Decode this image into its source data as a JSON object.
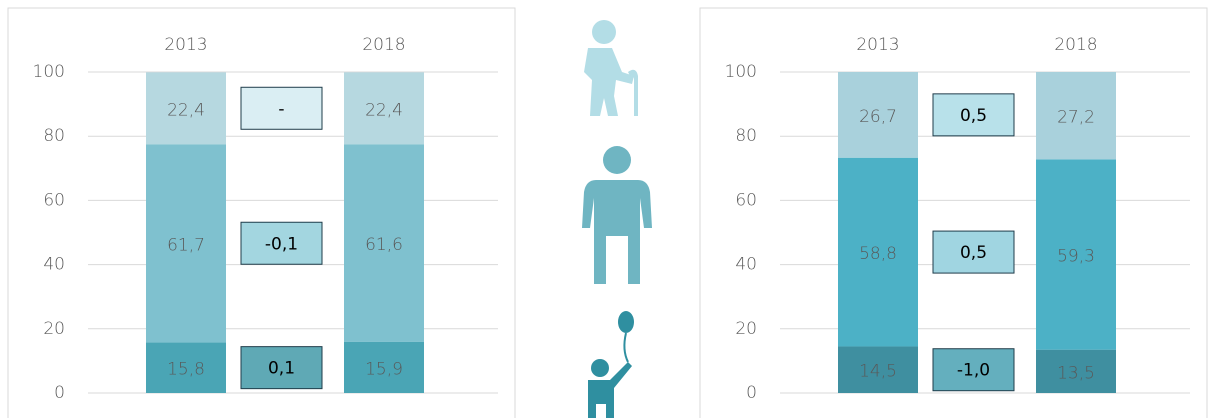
{
  "chart_data": [
    {
      "type": "stacked_bar",
      "categories": [
        "2013",
        "2018"
      ],
      "series": [
        {
          "color": "#4aa5b5",
          "values": [
            15.8,
            15.9
          ],
          "value_labels": [
            "15,8",
            "15,9"
          ]
        },
        {
          "color": "#7fc1cf",
          "values": [
            61.7,
            61.6
          ],
          "value_labels": [
            "61,7",
            "61,6"
          ]
        },
        {
          "color": "#b6d8e0",
          "values": [
            22.4,
            22.4
          ],
          "value_labels": [
            "22,4",
            "22,4"
          ]
        }
      ],
      "annotations": [
        {
          "text": "0,1",
          "color": "#5fa9b5"
        },
        {
          "text": "-0,1",
          "color": "#a3d6e0"
        },
        {
          "text": "-",
          "color": "#daeef3"
        }
      ],
      "ylim": [
        0,
        100
      ],
      "yticks": [
        0,
        20,
        40,
        60,
        80,
        100
      ],
      "grid": true
    },
    {
      "type": "stacked_bar",
      "categories": [
        "2013",
        "2018"
      ],
      "series": [
        {
          "color": "#3f8fa0",
          "values": [
            14.5,
            13.5
          ],
          "value_labels": [
            "14,5",
            "13,5"
          ]
        },
        {
          "color": "#4cb1c6",
          "values": [
            58.8,
            59.3
          ],
          "value_labels": [
            "58,8",
            "59,3"
          ]
        },
        {
          "color": "#a9d1dc",
          "values": [
            26.7,
            27.2
          ],
          "value_labels": [
            "26,7",
            "27,2"
          ]
        }
      ],
      "annotations": [
        {
          "text": "-1,0",
          "color": "#64afbe"
        },
        {
          "text": "0,5",
          "color": "#a0d5e1"
        },
        {
          "text": "0,5",
          "color": "#b8e1ea"
        }
      ],
      "ylim": [
        0,
        100
      ],
      "yticks": [
        0,
        20,
        40,
        60,
        80,
        100
      ],
      "grid": true
    }
  ]
}
